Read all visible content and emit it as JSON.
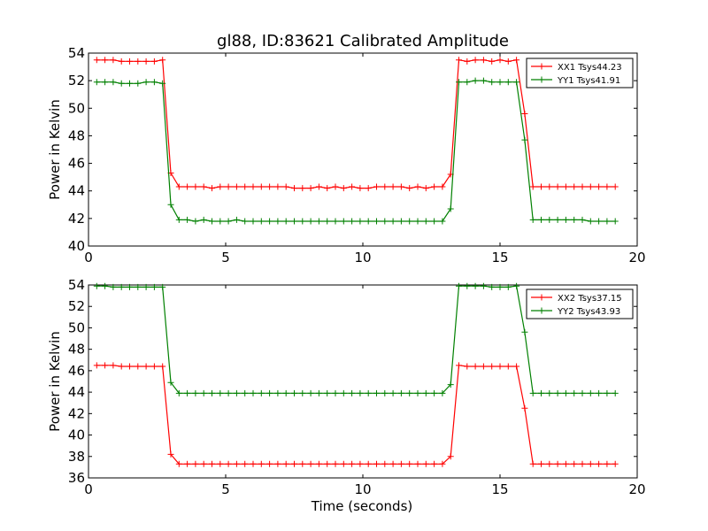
{
  "title": "gl88, ID:83621 Calibrated Amplitude",
  "chart_data": [
    {
      "type": "line",
      "ylabel": "Power in Kelvin",
      "xlabel": "",
      "xlim": [
        0,
        20
      ],
      "ylim": [
        40,
        54
      ],
      "xticks": [
        "0",
        "5",
        "10",
        "15",
        "20"
      ],
      "yticks": [
        "40",
        "42",
        "44",
        "46",
        "48",
        "50",
        "52",
        "54"
      ],
      "grid": false,
      "legend_position": "top-right",
      "x": [
        0.3,
        0.6,
        0.9,
        1.2,
        1.5,
        1.8,
        2.1,
        2.4,
        2.7,
        3.0,
        3.3,
        3.6,
        3.9,
        4.2,
        4.5,
        4.8,
        5.1,
        5.4,
        5.7,
        6.0,
        6.3,
        6.6,
        6.9,
        7.2,
        7.5,
        7.8,
        8.1,
        8.4,
        8.7,
        9.0,
        9.3,
        9.6,
        9.9,
        10.2,
        10.5,
        10.8,
        11.1,
        11.4,
        11.7,
        12.0,
        12.3,
        12.6,
        12.9,
        13.2,
        13.5,
        13.8,
        14.1,
        14.4,
        14.7,
        15.0,
        15.3,
        15.6,
        15.9,
        16.2,
        16.5,
        16.8,
        17.1,
        17.4,
        17.7,
        18.0,
        18.3,
        18.6,
        18.9,
        19.2
      ],
      "series": [
        {
          "name": "XX1 Tsys44.23",
          "color": "#ff0000",
          "values": [
            53.5,
            53.5,
            53.5,
            53.4,
            53.4,
            53.4,
            53.4,
            53.4,
            53.5,
            45.3,
            44.3,
            44.3,
            44.3,
            44.3,
            44.2,
            44.3,
            44.3,
            44.3,
            44.3,
            44.3,
            44.3,
            44.3,
            44.3,
            44.3,
            44.2,
            44.2,
            44.2,
            44.3,
            44.2,
            44.3,
            44.2,
            44.3,
            44.2,
            44.2,
            44.3,
            44.3,
            44.3,
            44.3,
            44.2,
            44.3,
            44.2,
            44.3,
            44.3,
            45.2,
            53.5,
            53.4,
            53.5,
            53.5,
            53.4,
            53.5,
            53.4,
            53.5,
            49.6,
            44.3,
            44.3,
            44.3,
            44.3,
            44.3,
            44.3,
            44.3,
            44.3,
            44.3,
            44.3,
            44.3
          ]
        },
        {
          "name": "YY1 Tsys41.91",
          "color": "#008000",
          "values": [
            51.9,
            51.9,
            51.9,
            51.8,
            51.8,
            51.8,
            51.9,
            51.9,
            51.8,
            43.0,
            41.9,
            41.9,
            41.8,
            41.9,
            41.8,
            41.8,
            41.8,
            41.9,
            41.8,
            41.8,
            41.8,
            41.8,
            41.8,
            41.8,
            41.8,
            41.8,
            41.8,
            41.8,
            41.8,
            41.8,
            41.8,
            41.8,
            41.8,
            41.8,
            41.8,
            41.8,
            41.8,
            41.8,
            41.8,
            41.8,
            41.8,
            41.8,
            41.8,
            42.7,
            51.9,
            51.9,
            52.0,
            52.0,
            51.9,
            51.9,
            51.9,
            51.9,
            47.7,
            41.9,
            41.9,
            41.9,
            41.9,
            41.9,
            41.9,
            41.9,
            41.8,
            41.8,
            41.8,
            41.8
          ]
        }
      ]
    },
    {
      "type": "line",
      "ylabel": "Power in Kelvin",
      "xlabel": "Time (seconds)",
      "xlim": [
        0,
        20
      ],
      "ylim": [
        36,
        54
      ],
      "xticks": [
        "0",
        "5",
        "10",
        "15",
        "20"
      ],
      "yticks": [
        "36",
        "38",
        "40",
        "42",
        "44",
        "46",
        "48",
        "50",
        "52",
        "54"
      ],
      "grid": false,
      "legend_position": "top-right",
      "x": [
        0.3,
        0.6,
        0.9,
        1.2,
        1.5,
        1.8,
        2.1,
        2.4,
        2.7,
        3.0,
        3.3,
        3.6,
        3.9,
        4.2,
        4.5,
        4.8,
        5.1,
        5.4,
        5.7,
        6.0,
        6.3,
        6.6,
        6.9,
        7.2,
        7.5,
        7.8,
        8.1,
        8.4,
        8.7,
        9.0,
        9.3,
        9.6,
        9.9,
        10.2,
        10.5,
        10.8,
        11.1,
        11.4,
        11.7,
        12.0,
        12.3,
        12.6,
        12.9,
        13.2,
        13.5,
        13.8,
        14.1,
        14.4,
        14.7,
        15.0,
        15.3,
        15.6,
        15.9,
        16.2,
        16.5,
        16.8,
        17.1,
        17.4,
        17.7,
        18.0,
        18.3,
        18.6,
        18.9,
        19.2
      ],
      "series": [
        {
          "name": "XX2 Tsys37.15",
          "color": "#ff0000",
          "values": [
            46.5,
            46.5,
            46.5,
            46.4,
            46.4,
            46.4,
            46.4,
            46.4,
            46.4,
            38.2,
            37.3,
            37.3,
            37.3,
            37.3,
            37.3,
            37.3,
            37.3,
            37.3,
            37.3,
            37.3,
            37.3,
            37.3,
            37.3,
            37.3,
            37.3,
            37.3,
            37.3,
            37.3,
            37.3,
            37.3,
            37.3,
            37.3,
            37.3,
            37.3,
            37.3,
            37.3,
            37.3,
            37.3,
            37.3,
            37.3,
            37.3,
            37.3,
            37.3,
            38.0,
            46.5,
            46.4,
            46.4,
            46.4,
            46.4,
            46.4,
            46.4,
            46.4,
            42.5,
            37.3,
            37.3,
            37.3,
            37.3,
            37.3,
            37.3,
            37.3,
            37.3,
            37.3,
            37.3,
            37.3
          ]
        },
        {
          "name": "YY2 Tsys43.93",
          "color": "#008000",
          "values": [
            53.9,
            53.9,
            53.8,
            53.8,
            53.8,
            53.8,
            53.8,
            53.8,
            53.8,
            44.9,
            43.9,
            43.9,
            43.9,
            43.9,
            43.9,
            43.9,
            43.9,
            43.9,
            43.9,
            43.9,
            43.9,
            43.9,
            43.9,
            43.9,
            43.9,
            43.9,
            43.9,
            43.9,
            43.9,
            43.9,
            43.9,
            43.9,
            43.9,
            43.9,
            43.9,
            43.9,
            43.9,
            43.9,
            43.9,
            43.9,
            43.9,
            43.9,
            43.9,
            44.7,
            53.9,
            53.9,
            53.9,
            53.9,
            53.8,
            53.8,
            53.8,
            53.9,
            49.6,
            43.9,
            43.9,
            43.9,
            43.9,
            43.9,
            43.9,
            43.9,
            43.9,
            43.9,
            43.9,
            43.9
          ]
        }
      ]
    }
  ]
}
